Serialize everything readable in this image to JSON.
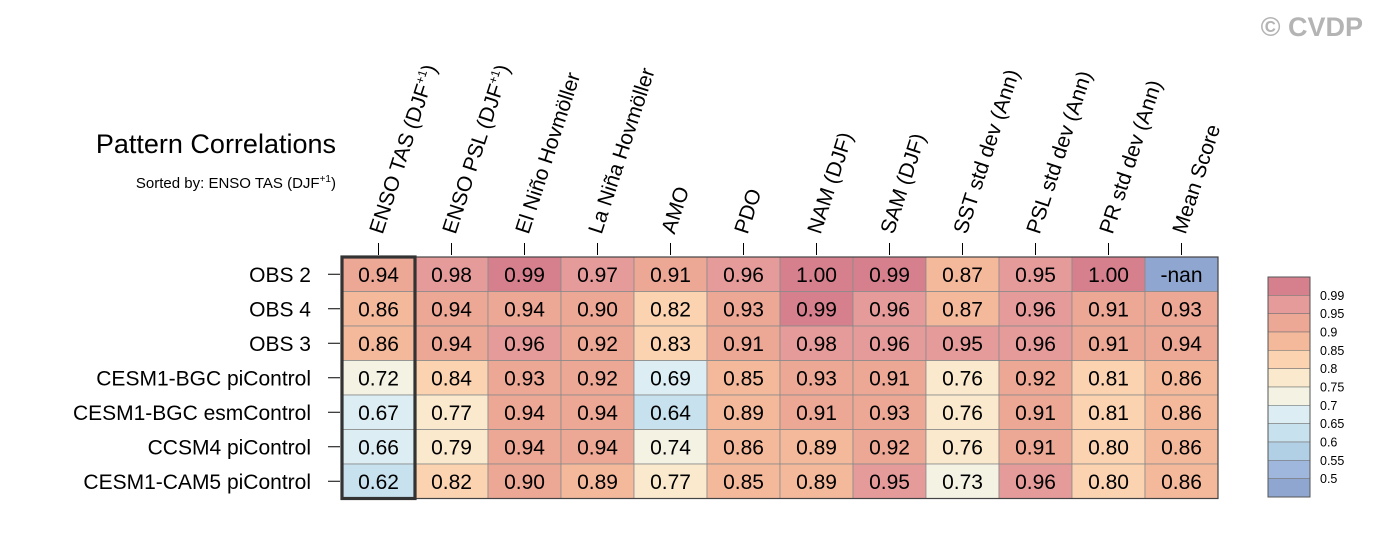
{
  "credit": "© CVDP",
  "chart_data": {
    "type": "heatmap",
    "title": "Pattern Correlations",
    "subtitle": {
      "prefix": "Sorted by: ENSO TAS (DJF",
      "superscript": "+1",
      "suffix": ")"
    },
    "columns": [
      {
        "label": "ENSO TAS (DJF",
        "sup": "+1",
        "tail": ")"
      },
      {
        "label": "ENSO PSL (DJF",
        "sup": "+1",
        "tail": ")"
      },
      {
        "label": "El Niño Hovmöller"
      },
      {
        "label": "La Niña Hovmöller"
      },
      {
        "label": "AMO"
      },
      {
        "label": "PDO"
      },
      {
        "label": "NAM (DJF)"
      },
      {
        "label": "SAM (DJF)"
      },
      {
        "label": "SST std dev (Ann)"
      },
      {
        "label": "PSL std dev (Ann)"
      },
      {
        "label": "PR std dev (Ann)"
      },
      {
        "label": "Mean Score"
      }
    ],
    "rows": [
      "OBS 2",
      "OBS 4",
      "OBS 3",
      "CESM1-BGC piControl",
      "CESM1-BGC esmControl",
      "CCSM4 piControl",
      "CESM1-CAM5 piControl"
    ],
    "values": [
      [
        "0.94",
        "0.98",
        "0.99",
        "0.97",
        "0.91",
        "0.96",
        "1.00",
        "0.99",
        "0.87",
        "0.95",
        "1.00",
        "-nan"
      ],
      [
        "0.86",
        "0.94",
        "0.94",
        "0.90",
        "0.82",
        "0.93",
        "0.99",
        "0.96",
        "0.87",
        "0.96",
        "0.91",
        "0.93"
      ],
      [
        "0.86",
        "0.94",
        "0.96",
        "0.92",
        "0.83",
        "0.91",
        "0.98",
        "0.96",
        "0.95",
        "0.96",
        "0.91",
        "0.94"
      ],
      [
        "0.72",
        "0.84",
        "0.93",
        "0.92",
        "0.69",
        "0.85",
        "0.93",
        "0.91",
        "0.76",
        "0.92",
        "0.81",
        "0.86"
      ],
      [
        "0.67",
        "0.77",
        "0.94",
        "0.94",
        "0.64",
        "0.89",
        "0.91",
        "0.93",
        "0.76",
        "0.91",
        "0.81",
        "0.86"
      ],
      [
        "0.66",
        "0.79",
        "0.94",
        "0.94",
        "0.74",
        "0.86",
        "0.89",
        "0.92",
        "0.76",
        "0.91",
        "0.80",
        "0.86"
      ],
      [
        "0.62",
        "0.82",
        "0.90",
        "0.89",
        "0.77",
        "0.85",
        "0.89",
        "0.95",
        "0.73",
        "0.96",
        "0.80",
        "0.86"
      ]
    ],
    "sorted_column_index": 0,
    "nan_color": "#8fa6d1",
    "colorbar": {
      "levels": [
        "0.99",
        "0.95",
        "0.9",
        "0.85",
        "0.8",
        "0.75",
        "0.7",
        "0.65",
        "0.6",
        "0.55",
        "0.5"
      ],
      "colors": [
        "#d6808e",
        "#e69b9b",
        "#eda795",
        "#f4b89b",
        "#fbd3b1",
        "#fae9cd",
        "#f4f2e3",
        "#dcedf4",
        "#c7e2ee",
        "#b1cfe5",
        "#9fb7dc",
        "#8fa6d1"
      ]
    }
  }
}
